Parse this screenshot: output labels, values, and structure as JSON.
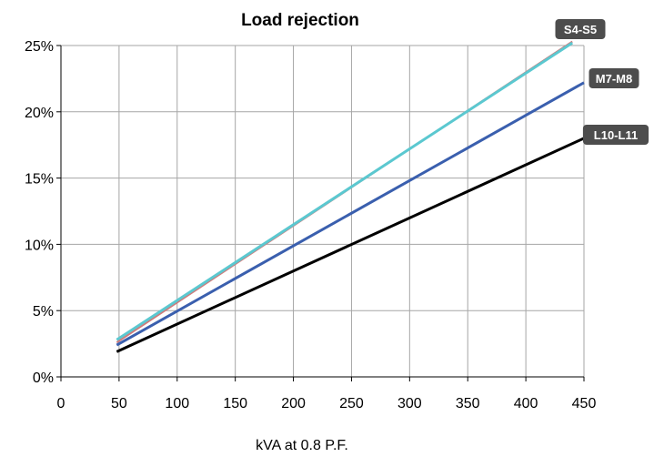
{
  "chart_data": {
    "type": "line",
    "title": "Load rejection",
    "xlabel": "kVA at 0.8 P.F.",
    "ylabel": "",
    "xlim": [
      0,
      450
    ],
    "ylim": [
      0,
      25
    ],
    "xticks": [
      0,
      50,
      100,
      150,
      200,
      250,
      300,
      350,
      400,
      450
    ],
    "xtick_labels": [
      "0",
      "50",
      "100",
      "150",
      "200",
      "250",
      "300",
      "350",
      "400",
      "450"
    ],
    "yticks": [
      0,
      5,
      10,
      15,
      20,
      25
    ],
    "ytick_labels": [
      "0%",
      "5%",
      "10%",
      "15%",
      "20%",
      "25%"
    ],
    "grid": true,
    "legend": "none",
    "series": [
      {
        "name": "S4-S5",
        "color": "#5bc8d0",
        "x": [
          48,
          440
        ],
        "y": [
          2.8,
          25.2
        ]
      },
      {
        "name": "",
        "color": "#d07a7a",
        "x": [
          48,
          440
        ],
        "y": [
          2.6,
          25.3
        ]
      },
      {
        "name": "M7-M8",
        "color": "#3a5fae",
        "x": [
          48,
          450
        ],
        "y": [
          2.4,
          22.2
        ]
      },
      {
        "name": "L10-L11",
        "color": "#000000",
        "x": [
          48,
          450
        ],
        "y": [
          1.9,
          18.0
        ]
      }
    ]
  }
}
